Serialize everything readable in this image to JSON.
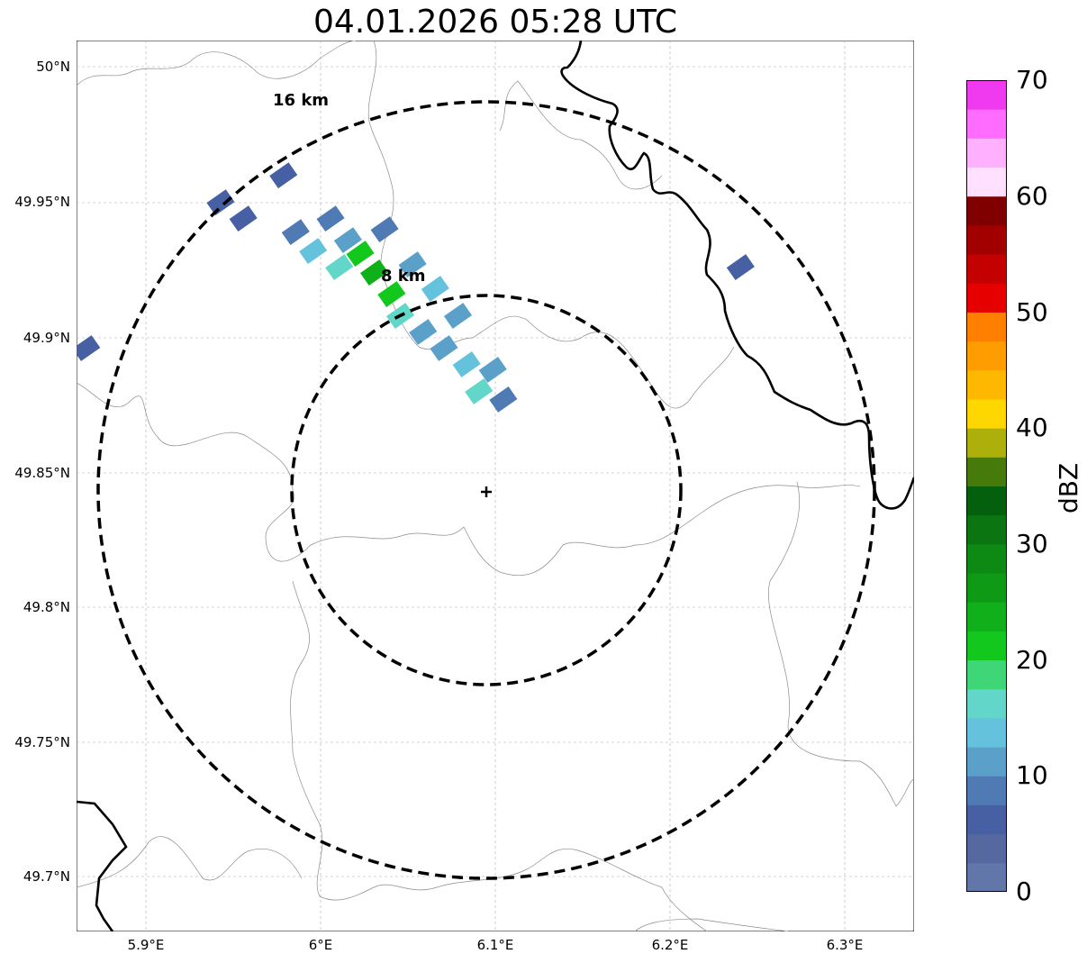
{
  "title": "04.01.2026 05:28 UTC",
  "y_ticks": [
    "50°N",
    "49.95°N",
    "49.9°N",
    "49.85°N",
    "49.8°N",
    "49.75°N",
    "49.7°N"
  ],
  "x_ticks": [
    "5.9°E",
    "6°E",
    "6.1°E",
    "6.2°E",
    "6.3°E"
  ],
  "range_rings": [
    {
      "label": "8 km",
      "radius_km": 8
    },
    {
      "label": "16 km",
      "radius_km": 16
    }
  ],
  "radar_site": {
    "lon": 6.095,
    "lat": 49.843
  },
  "colorbar": {
    "label": "dBZ",
    "ticks": [
      "0",
      "10",
      "20",
      "30",
      "40",
      "50",
      "60",
      "70"
    ],
    "colors": [
      "#6177aa",
      "#5568a0",
      "#4660a3",
      "#4f7ab4",
      "#5aa0c8",
      "#64c2dc",
      "#62d6c8",
      "#3ed676",
      "#12c81d",
      "#0fb01a",
      "#0e9a15",
      "#0c8a14",
      "#0a7511",
      "#05600d",
      "#467a0a",
      "#adb00a",
      "#ffd700",
      "#ffb800",
      "#ff9c00",
      "#ff7f00",
      "#e60000",
      "#c40000",
      "#a20000",
      "#800000",
      "#ffe0ff",
      "#ffb0ff",
      "#ff6cff",
      "#f03af0"
    ]
  },
  "chart_data": {
    "type": "map",
    "title": "04.01.2026 05:28 UTC",
    "xlim": [
      5.86,
      6.34
    ],
    "ylim": [
      49.68,
      50.01
    ],
    "grid": true,
    "legend": "colorbar-right",
    "units": "dBZ",
    "reflectivity_cells": [
      {
        "lon": 5.942,
        "lat": 49.95,
        "dbz": 7
      },
      {
        "lon": 5.955,
        "lat": 49.944,
        "dbz": 7
      },
      {
        "lon": 5.978,
        "lat": 49.96,
        "dbz": 5
      },
      {
        "lon": 5.985,
        "lat": 49.939,
        "dbz": 9
      },
      {
        "lon": 5.995,
        "lat": 49.932,
        "dbz": 13
      },
      {
        "lon": 6.005,
        "lat": 49.944,
        "dbz": 8
      },
      {
        "lon": 6.01,
        "lat": 49.926,
        "dbz": 15
      },
      {
        "lon": 6.015,
        "lat": 49.936,
        "dbz": 11
      },
      {
        "lon": 6.022,
        "lat": 49.931,
        "dbz": 22
      },
      {
        "lon": 6.03,
        "lat": 49.924,
        "dbz": 24
      },
      {
        "lon": 6.036,
        "lat": 49.94,
        "dbz": 9
      },
      {
        "lon": 6.04,
        "lat": 49.916,
        "dbz": 22
      },
      {
        "lon": 6.045,
        "lat": 49.908,
        "dbz": 16
      },
      {
        "lon": 6.052,
        "lat": 49.927,
        "dbz": 12
      },
      {
        "lon": 6.058,
        "lat": 49.902,
        "dbz": 10
      },
      {
        "lon": 6.065,
        "lat": 49.918,
        "dbz": 13
      },
      {
        "lon": 6.07,
        "lat": 49.896,
        "dbz": 12
      },
      {
        "lon": 6.078,
        "lat": 49.908,
        "dbz": 10
      },
      {
        "lon": 6.083,
        "lat": 49.89,
        "dbz": 14
      },
      {
        "lon": 6.09,
        "lat": 49.88,
        "dbz": 15
      },
      {
        "lon": 6.098,
        "lat": 49.888,
        "dbz": 11
      },
      {
        "lon": 6.104,
        "lat": 49.877,
        "dbz": 9
      },
      {
        "lon": 5.865,
        "lat": 49.896,
        "dbz": 5
      },
      {
        "lon": 6.24,
        "lat": 49.926,
        "dbz": 5
      }
    ]
  }
}
